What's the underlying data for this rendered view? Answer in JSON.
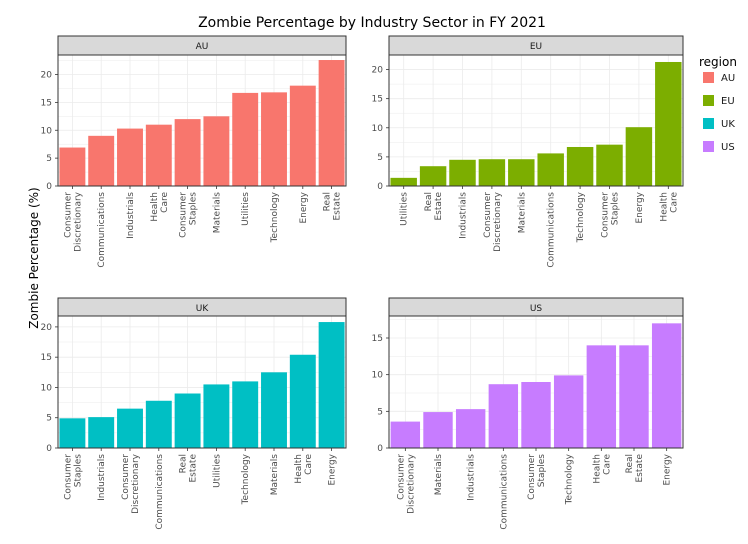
{
  "title": "Zombie Percentage by Industry Sector in FY 2021",
  "ylabel": "Zombie Percentage (%)",
  "legend": {
    "title": "region",
    "placement": "right",
    "items": [
      {
        "name": "AU",
        "color": "#F8766D"
      },
      {
        "name": "EU",
        "color": "#7CAE00"
      },
      {
        "name": "UK",
        "color": "#00BFC4"
      },
      {
        "name": "US",
        "color": "#C77CFF"
      }
    ]
  },
  "chart_data": [
    {
      "type": "bar",
      "panel": "AU",
      "color": "#F8766D",
      "ylim": [
        0,
        23.5
      ],
      "yticks": [
        0,
        5,
        10,
        15,
        20
      ],
      "categories": [
        "Consumer Discretionary",
        "Communications",
        "Industrials",
        "Health Care",
        "Consumer Staples",
        "Materials",
        "Utilities",
        "Technology",
        "Energy",
        "Real Estate"
      ],
      "values": [
        6.9,
        9.0,
        10.3,
        11.0,
        12.0,
        12.5,
        16.7,
        16.8,
        18.0,
        22.6
      ]
    },
    {
      "type": "bar",
      "panel": "EU",
      "color": "#7CAE00",
      "ylim": [
        0,
        22.5
      ],
      "yticks": [
        0,
        5,
        10,
        15,
        20
      ],
      "categories": [
        "Utilities",
        "Real Estate",
        "Industrials",
        "Consumer Discretionary",
        "Materials",
        "Communications",
        "Technology",
        "Consumer Staples",
        "Energy",
        "Health Care"
      ],
      "values": [
        1.4,
        3.4,
        4.5,
        4.6,
        4.6,
        5.6,
        6.7,
        7.1,
        10.1,
        21.3
      ]
    },
    {
      "type": "bar",
      "panel": "UK",
      "color": "#00BFC4",
      "ylim": [
        0,
        21.8
      ],
      "yticks": [
        0,
        5,
        10,
        15,
        20
      ],
      "categories": [
        "Consumer Staples",
        "Industrials",
        "Consumer Discretionary",
        "Communications",
        "Real Estate",
        "Utilities",
        "Technology",
        "Materials",
        "Health Care",
        "Energy"
      ],
      "values": [
        4.9,
        5.1,
        6.5,
        7.8,
        9.0,
        10.5,
        11.0,
        12.5,
        15.4,
        20.8
      ]
    },
    {
      "type": "bar",
      "panel": "US",
      "color": "#C77CFF",
      "ylim": [
        0,
        18.0
      ],
      "yticks": [
        0,
        5,
        10,
        15
      ],
      "categories": [
        "Consumer Discretionary",
        "Materials",
        "Industrials",
        "Communications",
        "Consumer Staples",
        "Technology",
        "Health Care",
        "Real Estate",
        "Energy"
      ],
      "values": [
        3.6,
        4.9,
        5.3,
        8.7,
        9.0,
        9.9,
        14.0,
        14.0,
        17.0
      ]
    }
  ]
}
